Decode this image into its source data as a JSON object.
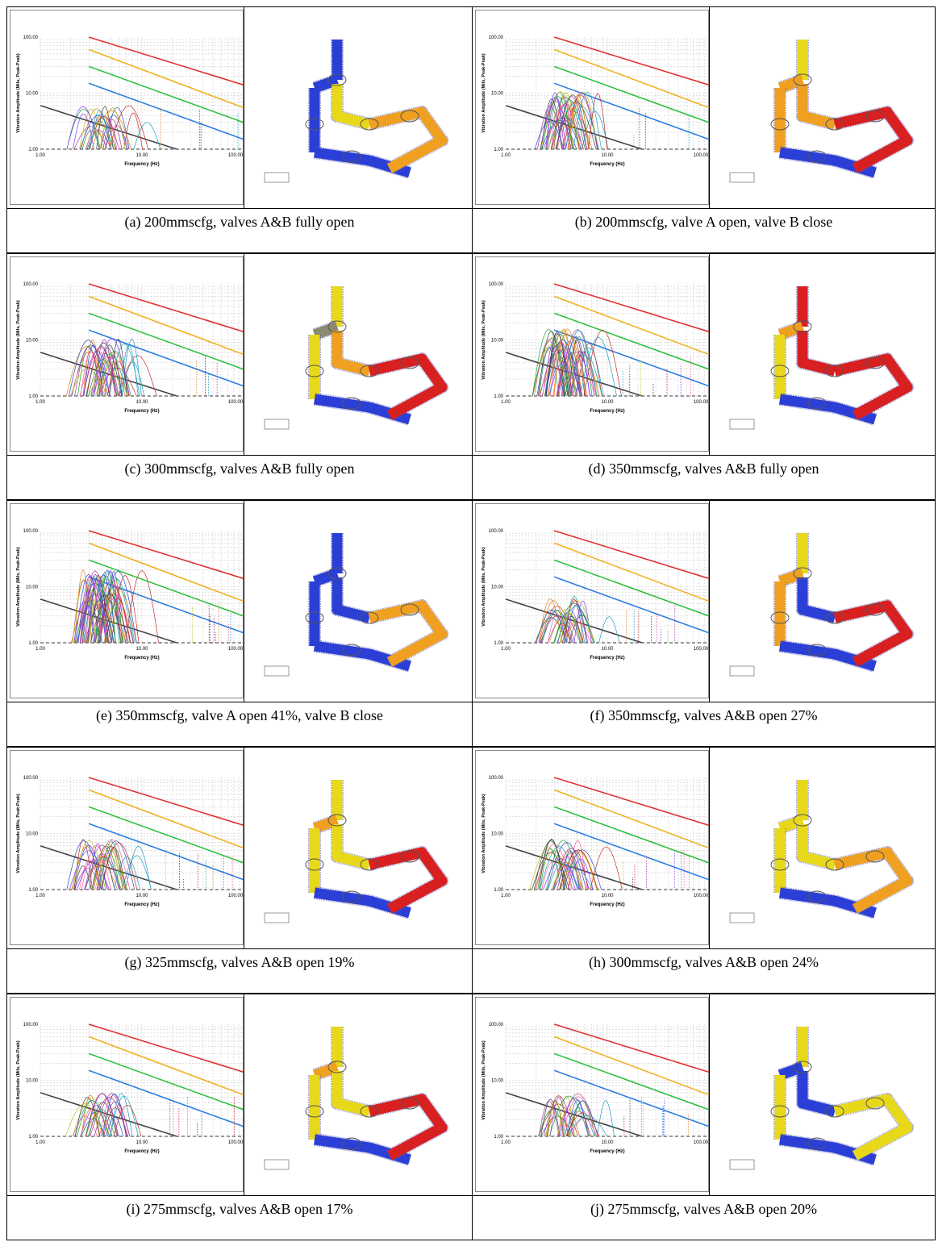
{
  "figure": {
    "chart": {
      "y_label": "Vibration Amplitude (Mils, Peak-Peak)",
      "x_label": "Frequency (Hz)",
      "y_ticks": [
        "100.00",
        "10.00",
        "1.00"
      ],
      "x_ticks": [
        "1.00",
        "10.00",
        "100.00"
      ]
    },
    "panels": [
      {
        "caption": "(a) 200mmscfg, valves A&B fully open"
      },
      {
        "caption": "(b) 200mmscfg, valve A open, valve B close"
      },
      {
        "caption": "(c) 300mmscfg, valves A&B fully open"
      },
      {
        "caption": "(d) 350mmscfg, valves A&B fully open"
      },
      {
        "caption": "(e) 350mmscfg, valve A open 41%, valve B close"
      },
      {
        "caption": "(f) 350mmscfg, valves A&B open 27%"
      },
      {
        "caption": "(g) 325mmscfg, valves A&B open 19%"
      },
      {
        "caption": "(h) 300mmscfg, valves A&B open 24%"
      },
      {
        "caption": "(i) 275mmscfg, valves A&B open 17%"
      },
      {
        "caption": "(j) 275mmscfg, valves A&B open 20%"
      }
    ]
  }
}
